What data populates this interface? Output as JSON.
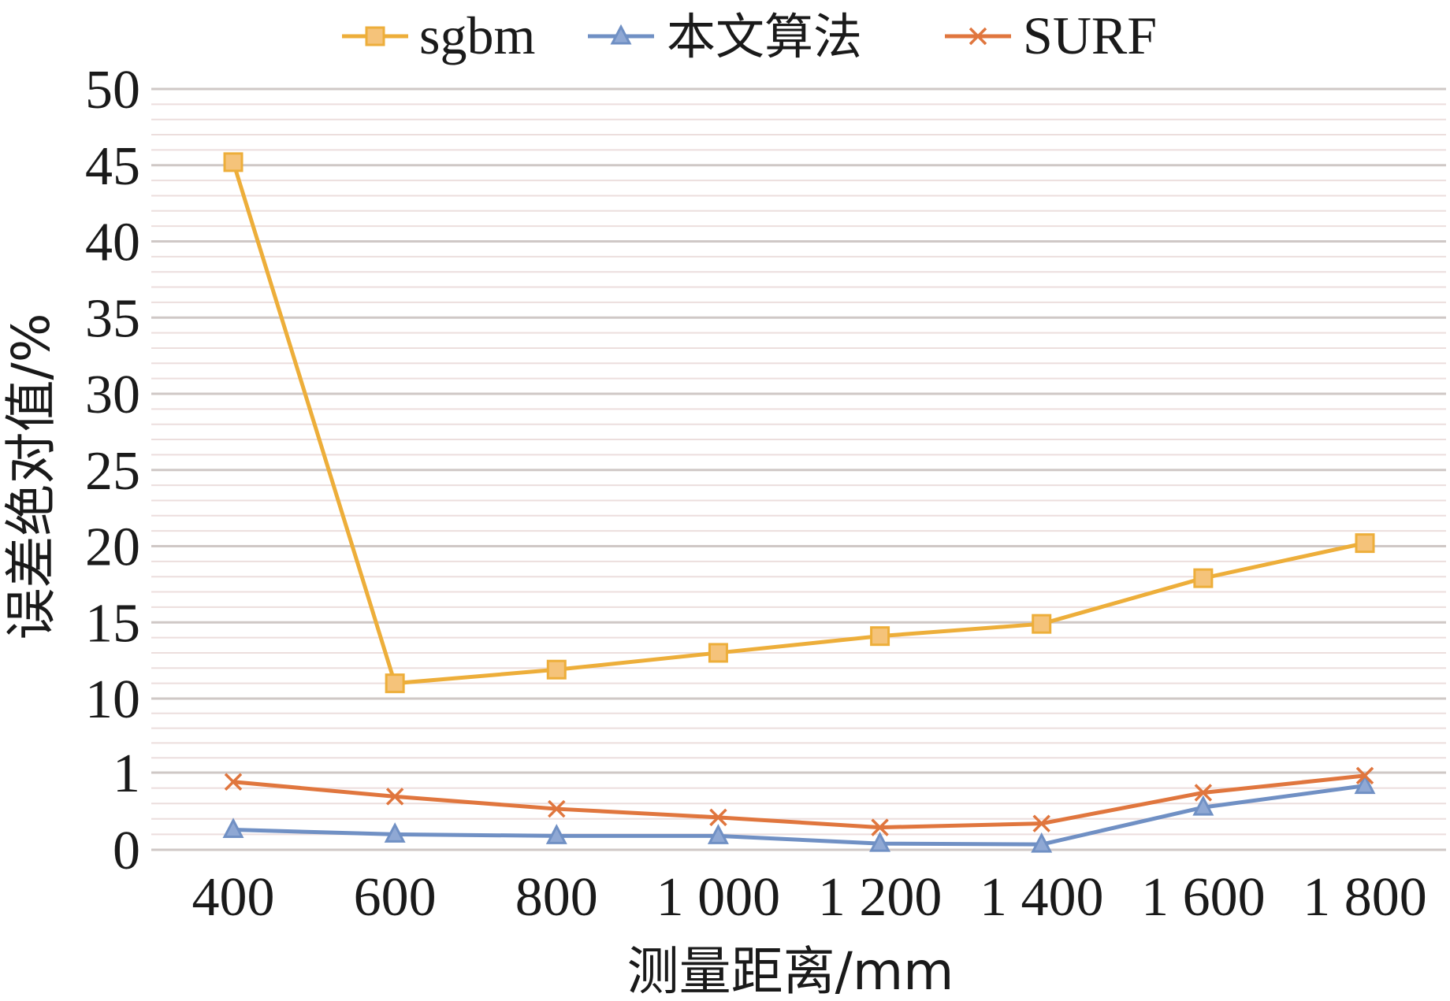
{
  "chart_data": {
    "type": "line",
    "title": "",
    "xlabel": "测量距离/mm",
    "ylabel": "误差绝对值/%",
    "categories": [
      "400",
      "600",
      "800",
      "1 000",
      "1 200",
      "1 400",
      "1 600",
      "1 800"
    ],
    "y_tick_labels": [
      "0",
      "1",
      "10",
      "15",
      "20",
      "25",
      "30",
      "35",
      "40",
      "45",
      "50"
    ],
    "y_scale": "piecewise: tick '0' to tick '1' spans 0-1, tick '1' to tick '10' treated as 1-10, then linear to 50",
    "ylim": [
      0,
      50
    ],
    "grid": true,
    "legend_position": "top",
    "series": [
      {
        "name": "sgbm",
        "color": "#EDAE3A",
        "marker": "square",
        "values": [
          45.2,
          11.0,
          11.9,
          13.0,
          14.1,
          14.9,
          17.9,
          20.2
        ]
      },
      {
        "name": "本文算法",
        "color": "#7090C4",
        "marker": "triangle",
        "values": [
          0.26,
          0.2,
          0.18,
          0.18,
          0.08,
          0.07,
          0.55,
          0.83
        ]
      },
      {
        "name": "SURF",
        "color": "#E0763E",
        "marker": "x",
        "values": [
          0.88,
          0.69,
          0.53,
          0.42,
          0.29,
          0.34,
          0.74,
          0.96
        ]
      }
    ]
  }
}
